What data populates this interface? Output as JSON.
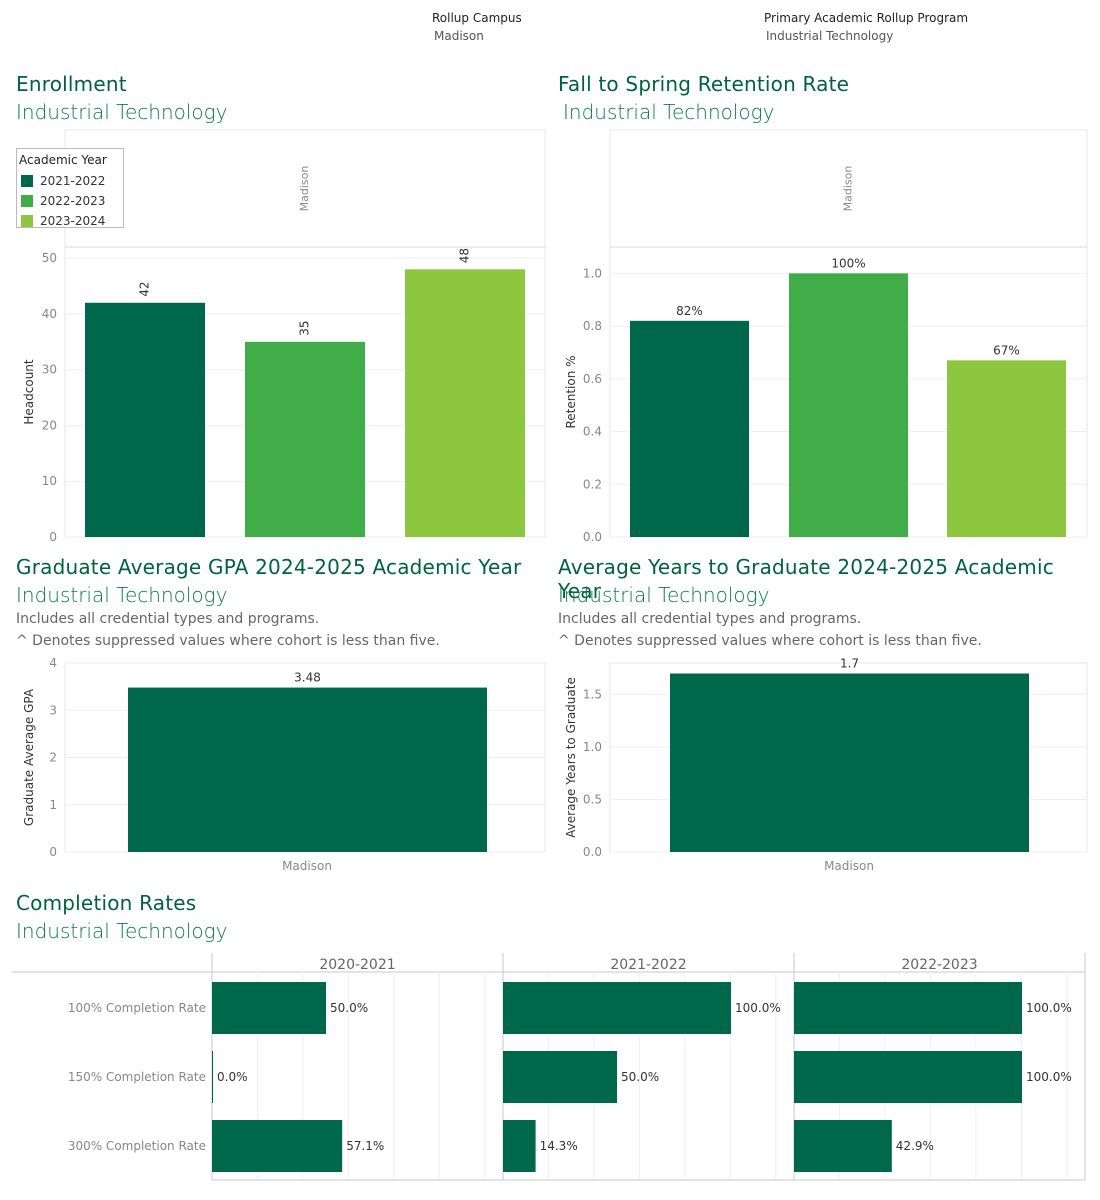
{
  "filters": [
    {
      "label": "Rollup Campus",
      "value": "Madison"
    },
    {
      "label": "Primary Academic Rollup Program",
      "value": "Industrial Technology"
    }
  ],
  "colors": {
    "2021-2022": "#00684a",
    "2022-2023": "#41ad49",
    "2023-2024": "#8dc63f",
    "dark": "#00684a"
  },
  "sections": {
    "enrollment": {
      "title": "Enrollment",
      "subtitle": "Industrial Technology"
    },
    "retention": {
      "title": "Fall to Spring Retention Rate",
      "subtitle": "Industrial Technology"
    },
    "gpa": {
      "title": "Graduate Average GPA 2024-2025 Academic Year",
      "subtitle": "Industrial Technology",
      "note1": "Includes all credential types and programs.",
      "note2": "^ Denotes suppressed values where cohort is less than five."
    },
    "years": {
      "title": "Average Years to Graduate 2024-2025 Academic Year",
      "subtitle": "Industrial Technology",
      "note1": "Includes all credential types and programs.",
      "note2": "^ Denotes suppressed values where cohort is less than five."
    },
    "completion": {
      "title": "Completion Rates",
      "subtitle": "Industrial Technology"
    }
  },
  "legend": {
    "title": "Academic Year",
    "items": [
      "2021-2022",
      "2022-2023",
      "2023-2024"
    ]
  },
  "chart_data": [
    {
      "id": "enrollment",
      "type": "bar",
      "header": "Madison",
      "categories": [
        "2021-2022",
        "2022-2023",
        "2023-2024"
      ],
      "values": [
        42,
        35,
        48
      ],
      "labels": [
        "42",
        "35",
        "48"
      ],
      "ylabel": "Headcount",
      "ylim": [
        0,
        52
      ],
      "yticks": [
        0,
        10,
        20,
        30,
        40,
        50
      ],
      "ytick_labels": [
        "0",
        "10",
        "20",
        "30",
        "40",
        "50"
      ]
    },
    {
      "id": "retention",
      "type": "bar",
      "header": "Madison",
      "categories": [
        "2021-2022",
        "2022-2023",
        "2023-2024"
      ],
      "values": [
        0.82,
        1.0,
        0.67
      ],
      "labels": [
        "82%",
        "100%",
        "67%"
      ],
      "ylabel": "Retention %",
      "ylim": [
        0,
        1.1
      ],
      "yticks": [
        0,
        0.2,
        0.4,
        0.6,
        0.8,
        1.0
      ],
      "ytick_labels": [
        "0.0",
        "0.2",
        "0.4",
        "0.6",
        "0.8",
        "1.0"
      ]
    },
    {
      "id": "gpa",
      "type": "bar",
      "categories": [
        "Madison"
      ],
      "values": [
        3.48
      ],
      "labels": [
        "3.48"
      ],
      "ylabel": "Graduate Average GPA",
      "ylim": [
        0,
        4
      ],
      "yticks": [
        0,
        1,
        2,
        3,
        4
      ],
      "ytick_labels": [
        "0",
        "1",
        "2",
        "3",
        "4"
      ]
    },
    {
      "id": "years",
      "type": "bar",
      "categories": [
        "Madison"
      ],
      "values": [
        1.7
      ],
      "labels": [
        "1.7"
      ],
      "ylabel": "Average Years to Graduate",
      "ylim": [
        0,
        1.8
      ],
      "yticks": [
        0,
        0.5,
        1.0,
        1.5
      ],
      "ytick_labels": [
        "0.0",
        "0.5",
        "1.0",
        "1.5"
      ]
    },
    {
      "id": "completion",
      "type": "bar",
      "rows": [
        "100% Completion Rate",
        "150% Completion Rate",
        "300% Completion Rate"
      ],
      "columns": [
        "2020-2021",
        "2021-2022",
        "2022-2023"
      ],
      "values": [
        [
          0.5,
          0.0,
          0.571
        ],
        [
          1.0,
          0.5,
          0.143
        ],
        [
          1.0,
          1.0,
          0.429
        ]
      ],
      "labels": [
        [
          "50.0%",
          "0.0%",
          "57.1%"
        ],
        [
          "100.0%",
          "50.0%",
          "14.3%"
        ],
        [
          "100.0%",
          "100.0%",
          "42.9%"
        ]
      ]
    }
  ]
}
